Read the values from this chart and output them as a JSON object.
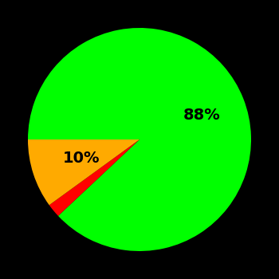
{
  "slices": [
    88,
    2,
    10
  ],
  "colors": [
    "#00ff00",
    "#ff0000",
    "#ffaa00"
  ],
  "labels": [
    "88%",
    "",
    "10%"
  ],
  "background_color": "#000000",
  "label_fontsize": 14,
  "label_fontweight": "bold",
  "startangle": 180,
  "figsize": [
    3.5,
    3.5
  ],
  "dpi": 100
}
